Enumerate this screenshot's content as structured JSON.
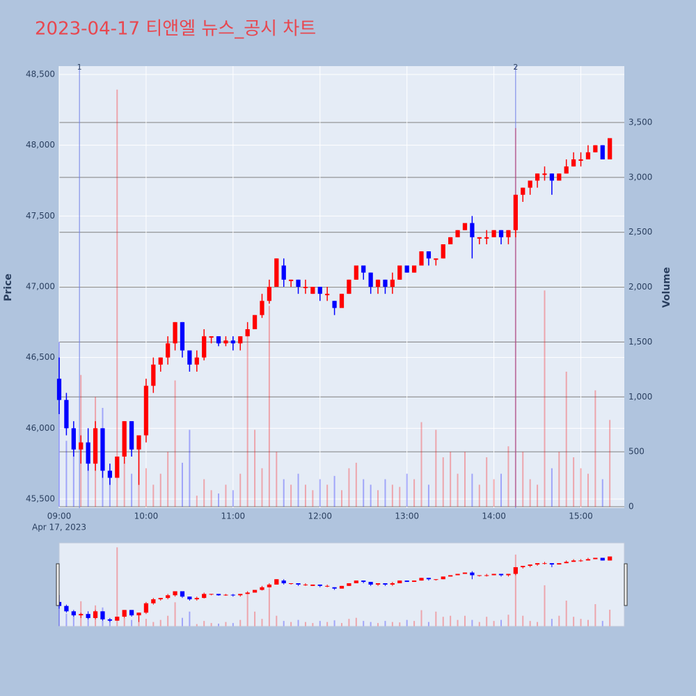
{
  "chart_data": {
    "type": "candlestick",
    "title": "2023-04-17 티앤엘 뉴스_공시 차트",
    "x": [
      "09:00",
      "09:05",
      "09:10",
      "09:15",
      "09:20",
      "09:25",
      "09:30",
      "09:35",
      "09:40",
      "09:45",
      "09:50",
      "09:55",
      "10:00",
      "10:05",
      "10:10",
      "10:15",
      "10:20",
      "10:25",
      "10:30",
      "10:35",
      "10:40",
      "10:45",
      "10:50",
      "10:55",
      "11:00",
      "11:05",
      "11:10",
      "11:15",
      "11:20",
      "11:25",
      "11:30",
      "11:35",
      "11:40",
      "11:45",
      "11:50",
      "11:55",
      "12:00",
      "12:05",
      "12:10",
      "12:15",
      "12:20",
      "12:25",
      "12:30",
      "12:35",
      "12:40",
      "12:45",
      "12:50",
      "12:55",
      "13:00",
      "13:05",
      "13:10",
      "13:15",
      "13:20",
      "13:25",
      "13:30",
      "13:35",
      "13:40",
      "13:45",
      "13:50",
      "13:55",
      "14:00",
      "14:05",
      "14:10",
      "14:15",
      "14:20",
      "14:25",
      "14:30",
      "14:35",
      "14:40",
      "14:45",
      "14:50",
      "14:55",
      "15:00",
      "15:05",
      "15:10",
      "15:15",
      "15:20"
    ],
    "open": [
      46350,
      46200,
      46000,
      45850,
      45900,
      45750,
      46000,
      45700,
      45650,
      45800,
      46050,
      45850,
      45950,
      46300,
      46450,
      46500,
      46600,
      46750,
      46550,
      46450,
      46500,
      46650,
      46650,
      46600,
      46620,
      46600,
      46650,
      46700,
      46800,
      46900,
      47000,
      47150,
      47050,
      47050,
      47000,
      46950,
      47000,
      46950,
      46900,
      46850,
      46950,
      47050,
      47150,
      47100,
      47000,
      47050,
      47000,
      47050,
      47150,
      47100,
      47150,
      47250,
      47200,
      47200,
      47300,
      47350,
      47400,
      47450,
      47350,
      47350,
      47350,
      47400,
      47350,
      47400,
      47650,
      47700,
      47750,
      47800,
      47800,
      47750,
      47800,
      47850,
      47900,
      47900,
      47950,
      48000,
      47900
    ],
    "high": [
      46500,
      46250,
      46050,
      45950,
      46000,
      46050,
      46000,
      45750,
      45800,
      46050,
      46050,
      45950,
      46350,
      46500,
      46500,
      46650,
      46750,
      46750,
      46550,
      46550,
      46700,
      46650,
      46650,
      46650,
      46650,
      46650,
      46750,
      46800,
      46950,
      47050,
      47200,
      47200,
      47050,
      47050,
      47050,
      47000,
      47000,
      47000,
      46900,
      46950,
      47050,
      47150,
      47150,
      47100,
      47050,
      47050,
      47100,
      47150,
      47150,
      47150,
      47250,
      47250,
      47200,
      47300,
      47350,
      47400,
      47450,
      47500,
      47350,
      47400,
      47400,
      47400,
      47400,
      47650,
      47700,
      47750,
      47800,
      47850,
      47800,
      47800,
      47900,
      47950,
      47950,
      48000,
      48000,
      48000,
      48050
    ],
    "low": [
      46100,
      45950,
      45800,
      45750,
      45700,
      45700,
      45650,
      45600,
      45650,
      45750,
      45800,
      45600,
      45900,
      46250,
      46400,
      46450,
      46550,
      46500,
      46400,
      46400,
      46480,
      46600,
      46580,
      46580,
      46550,
      46550,
      46650,
      46700,
      46780,
      46880,
      47000,
      47000,
      47000,
      46950,
      46950,
      46950,
      46900,
      46900,
      46800,
      46850,
      46950,
      47050,
      47050,
      46950,
      46950,
      46950,
      46950,
      47050,
      47100,
      47100,
      47150,
      47150,
      47150,
      47200,
      47300,
      47350,
      47400,
      47200,
      47300,
      47300,
      47350,
      47300,
      47300,
      47350,
      47600,
      47650,
      47700,
      47750,
      47650,
      47750,
      47800,
      47850,
      47850,
      47900,
      47950,
      47900,
      47900
    ],
    "close": [
      46200,
      46000,
      45850,
      45900,
      45750,
      46000,
      45700,
      45650,
      45800,
      46050,
      45850,
      45950,
      46300,
      46450,
      46500,
      46600,
      46750,
      46550,
      46450,
      46500,
      46650,
      46650,
      46600,
      46620,
      46600,
      46650,
      46700,
      46800,
      46900,
      47000,
      47200,
      47050,
      47050,
      47000,
      47000,
      47000,
      46950,
      46950,
      46850,
      46950,
      47050,
      47150,
      47100,
      47000,
      47050,
      47000,
      47050,
      47150,
      47100,
      47150,
      47250,
      47200,
      47200,
      47300,
      47350,
      47400,
      47450,
      47350,
      47350,
      47350,
      47400,
      47350,
      47400,
      47650,
      47700,
      47750,
      47800,
      47800,
      47750,
      47800,
      47850,
      47900,
      47900,
      47950,
      48000,
      47900,
      48050
    ],
    "volume": [
      1500,
      600,
      550,
      1200,
      500,
      1000,
      900,
      300,
      3800,
      400,
      300,
      500,
      350,
      200,
      300,
      500,
      1150,
      400,
      700,
      100,
      250,
      150,
      120,
      200,
      150,
      300,
      1600,
      700,
      350,
      1830,
      500,
      250,
      200,
      300,
      200,
      150,
      250,
      200,
      280,
      150,
      350,
      400,
      250,
      200,
      150,
      250,
      200,
      180,
      300,
      250,
      770,
      200,
      700,
      450,
      500,
      300,
      500,
      300,
      200,
      450,
      250,
      300,
      550,
      3450,
      500,
      250,
      200,
      1970,
      350,
      500,
      1230,
      450,
      350,
      300,
      1060,
      250,
      790
    ],
    "xlim": [
      "09:00",
      "15:30"
    ],
    "xticks": [
      "09:00",
      "10:00",
      "11:00",
      "12:00",
      "13:00",
      "14:00",
      "15:00"
    ],
    "x_date_label": "Apr 17, 2023",
    "ylabel": "Price",
    "ylim": [
      45436,
      48559
    ],
    "yticks": [
      {
        "value": 45500,
        "label": "45,500"
      },
      {
        "value": 46000,
        "label": "46,000"
      },
      {
        "value": 46500,
        "label": "46,500"
      },
      {
        "value": 47000,
        "label": "47,000"
      },
      {
        "value": 47500,
        "label": "47,500"
      },
      {
        "value": 48000,
        "label": "48,000"
      },
      {
        "value": 48500,
        "label": "48,500"
      }
    ],
    "y2label": "Volume",
    "y2lim": [
      -13,
      4014
    ],
    "y2ticks": [
      0,
      500,
      {
        "value": 1000,
        "label": "1,000"
      },
      {
        "value": 1500,
        "label": "1,500"
      },
      {
        "value": 2000,
        "label": "2,000"
      },
      {
        "value": 2500,
        "label": "2,500"
      },
      {
        "value": 3000,
        "label": "3,000"
      },
      {
        "value": 3500,
        "label": "3,500"
      }
    ],
    "increasing_color": "#ff0000",
    "decreasing_color": "#0000ff",
    "annotations": [
      {
        "x": "09:14",
        "label": "1"
      },
      {
        "x": "14:15",
        "label": "2"
      }
    ],
    "rangeslider": true
  }
}
